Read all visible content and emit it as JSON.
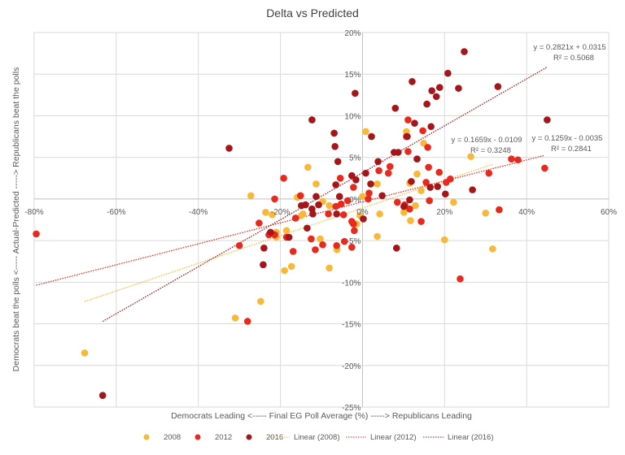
{
  "chart_data": {
    "type": "scatter",
    "title": "Delta vs Predicted",
    "xlabel": "Democrats Leading <----- Final EG Poll Average (%) -----> Republicans Leading",
    "ylabel": "Democrats  beat the polls <----- Actual-Predicted -----> Republicans beat the polls",
    "xlim": [
      -80,
      60
    ],
    "ylim": [
      -25,
      20
    ],
    "xticks": [
      "-80%",
      "-60%",
      "-40%",
      "-20%",
      "0%",
      "20%",
      "40%",
      "60%"
    ],
    "xtick_values": [
      -80,
      -60,
      -40,
      -20,
      0,
      20,
      40,
      60
    ],
    "yticks": [
      "20%",
      "15%",
      "10%",
      "5%",
      "0%",
      "-5%",
      "-10%",
      "-15%",
      "-20%",
      "-25%"
    ],
    "ytick_values": [
      20,
      15,
      10,
      5,
      0,
      -5,
      -10,
      -15,
      -20,
      -25
    ],
    "grid": true,
    "legend_position": "bottom",
    "series": [
      {
        "name": "2008",
        "color": "#F8B93A",
        "points": [
          [
            -67.7,
            -18.5
          ],
          [
            -31,
            -14.3
          ],
          [
            -24.8,
            -12.3
          ],
          [
            -27.2,
            0.4
          ],
          [
            -23.6,
            -1.6
          ],
          [
            -22,
            -1.9
          ],
          [
            -21,
            -4
          ],
          [
            -21,
            -4.6
          ],
          [
            -18.5,
            -3.8
          ],
          [
            -13.3,
            3.8
          ],
          [
            -11.3,
            1.8
          ],
          [
            -15.9,
            0.2
          ],
          [
            -14.5,
            -1.8
          ],
          [
            -14.9,
            -2
          ],
          [
            -9.7,
            -0.3
          ],
          [
            -8.1,
            -0.8
          ],
          [
            -10.3,
            -4.8
          ],
          [
            -6.2,
            -6.1
          ],
          [
            -8.1,
            -8.3
          ],
          [
            -19,
            -8.6
          ],
          [
            -17.3,
            -8.1
          ],
          [
            0,
            0.3
          ],
          [
            0.8,
            8.1
          ],
          [
            3.6,
            1.8
          ],
          [
            4.2,
            -1.8
          ],
          [
            -0.6,
            -2
          ],
          [
            -1.4,
            -3
          ],
          [
            3.6,
            -4.5
          ],
          [
            26.4,
            5.1
          ],
          [
            14.9,
            6.7
          ],
          [
            10.7,
            8.1
          ],
          [
            13.3,
            3
          ],
          [
            11.5,
            1.9
          ],
          [
            14.3,
            1
          ],
          [
            12.9,
            -0.8
          ],
          [
            22.2,
            -0.4
          ],
          [
            10.1,
            -1.6
          ],
          [
            30,
            -1.7
          ],
          [
            11.7,
            -2.6
          ],
          [
            20,
            -4.9
          ],
          [
            31.7,
            -6
          ]
        ]
      },
      {
        "name": "2012",
        "color": "#E8291E",
        "points": [
          [
            -79.5,
            -4.2
          ],
          [
            -28,
            -14.7
          ],
          [
            -19.2,
            2.5
          ],
          [
            -21.4,
            0
          ],
          [
            -25.2,
            -2.9
          ],
          [
            -30,
            -5.6
          ],
          [
            -22.8,
            -4.3
          ],
          [
            -21.4,
            -4.3
          ],
          [
            -18.5,
            -4.6
          ],
          [
            -16.9,
            -6.3
          ],
          [
            -16.3,
            -2.3
          ],
          [
            -15.1,
            0.4
          ],
          [
            -12.5,
            -4.8
          ],
          [
            -11.5,
            -6.1
          ],
          [
            -9.7,
            -5.5
          ],
          [
            -8.3,
            -1.8
          ],
          [
            -6.5,
            -0.9
          ],
          [
            -6.3,
            -5.6
          ],
          [
            -5.4,
            2.5
          ],
          [
            -5.2,
            -0.6
          ],
          [
            -4.6,
            -1.9
          ],
          [
            -4.4,
            -5.1
          ],
          [
            -2.6,
            -5.8
          ],
          [
            -2.6,
            -2.7
          ],
          [
            -2.2,
            -3
          ],
          [
            -2,
            -3.8
          ],
          [
            -2.2,
            1.4
          ],
          [
            -3.6,
            -0.2
          ],
          [
            1.6,
            0.7
          ],
          [
            1.4,
            0
          ],
          [
            4,
            3.4
          ],
          [
            6.3,
            3.1
          ],
          [
            6.7,
            3.9
          ],
          [
            8.5,
            -0.4
          ],
          [
            10.3,
            -0.7
          ],
          [
            10.7,
            7.5
          ],
          [
            11.1,
            5.7
          ],
          [
            11.1,
            9.5
          ],
          [
            14.7,
            8.2
          ],
          [
            15.9,
            6.2
          ],
          [
            16.1,
            3.8
          ],
          [
            18.7,
            3.2
          ],
          [
            15.5,
            2
          ],
          [
            20.4,
            2
          ],
          [
            21.4,
            2.4
          ],
          [
            11.5,
            -1.2
          ],
          [
            16.3,
            -0.2
          ],
          [
            14.3,
            -2.7
          ],
          [
            30.8,
            3.1
          ],
          [
            36.3,
            4.8
          ],
          [
            37.9,
            4.7
          ],
          [
            44.4,
            3.7
          ],
          [
            33.3,
            -1.3
          ],
          [
            23.8,
            -9.6
          ]
        ]
      },
      {
        "name": "2016",
        "color": "#A5161A",
        "points": [
          [
            -63.3,
            -23.6
          ],
          [
            -32.5,
            6.1
          ],
          [
            -12.3,
            9.5
          ],
          [
            -1.8,
            12.7
          ],
          [
            -6.9,
            7.9
          ],
          [
            -6.7,
            6.3
          ],
          [
            -6,
            4.5
          ],
          [
            -6.5,
            1.7
          ],
          [
            8,
            10.9
          ],
          [
            12.1,
            14.1
          ],
          [
            24.8,
            17.7
          ],
          [
            20.8,
            15.1
          ],
          [
            23.4,
            13.3
          ],
          [
            33,
            13.5
          ],
          [
            16.9,
            13
          ],
          [
            18.8,
            13.4
          ],
          [
            18,
            12.3
          ],
          [
            15.7,
            11.4
          ],
          [
            45,
            9.5
          ],
          [
            16.7,
            8.7
          ],
          [
            12.7,
            9.1
          ],
          [
            10.9,
            7.5
          ],
          [
            2.2,
            7.5
          ],
          [
            8.7,
            5.6
          ],
          [
            7.7,
            5.6
          ],
          [
            3.8,
            4.5
          ],
          [
            13.3,
            4.8
          ],
          [
            11.9,
            2.1
          ],
          [
            0.8,
            3.1
          ],
          [
            2,
            1.8
          ],
          [
            4.8,
            0.4
          ],
          [
            16.5,
            1.4
          ],
          [
            18.3,
            1.5
          ],
          [
            20.2,
            0.6
          ],
          [
            26.8,
            1.1
          ],
          [
            -5.6,
            0.3
          ],
          [
            -2.6,
            2.8
          ],
          [
            -1.6,
            2.3
          ],
          [
            -11.3,
            0.3
          ],
          [
            -14.9,
            -0.8
          ],
          [
            -13.9,
            -0.7
          ],
          [
            -12.3,
            -1.2
          ],
          [
            -12.1,
            -1.8
          ],
          [
            -10.7,
            -0.7
          ],
          [
            -6.3,
            -1.8
          ],
          [
            -13.5,
            -3.5
          ],
          [
            0.2,
            -2.4
          ],
          [
            -22.4,
            -4
          ],
          [
            -24,
            -5.9
          ],
          [
            -24.2,
            -7.9
          ],
          [
            -17.9,
            -4.6
          ],
          [
            8.3,
            -5.9
          ],
          [
            10.1,
            -0.9
          ],
          [
            11.5,
            -0.1
          ]
        ]
      }
    ],
    "trendlines": [
      {
        "name": "Linear (2008)",
        "color": "#F8B93A",
        "slope": 0.1659,
        "intercept": -0.0109,
        "equation": "y = 0.1659x - 0.0109",
        "r2": "R² = 0.3248",
        "x_range": [
          -67.7,
          31.7
        ]
      },
      {
        "name": "Linear (2012)",
        "color": "#E8291E",
        "slope": 0.1259,
        "intercept": -0.0035,
        "equation": "y = 0.1259x - 0.0035",
        "r2": "R² = 0.2841",
        "x_range": [
          -79.5,
          44.4
        ]
      },
      {
        "name": "Linear (2016)",
        "color": "#A5161A",
        "slope": 0.2821,
        "intercept": 0.0315,
        "equation": "y = 0.2821x + 0.0315",
        "r2": "R² = 0.5068",
        "x_range": [
          -63.3,
          45
        ]
      }
    ]
  }
}
